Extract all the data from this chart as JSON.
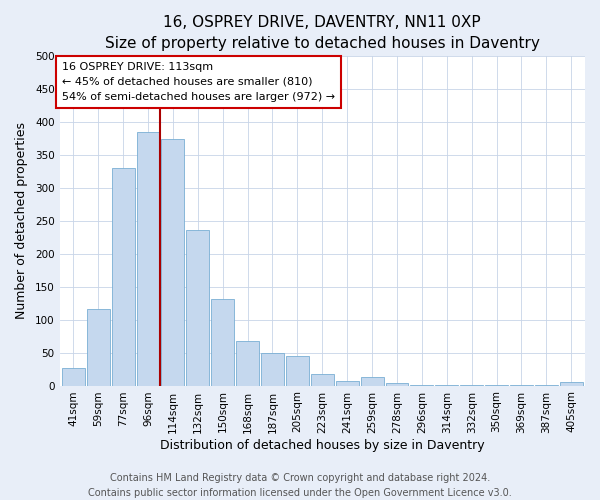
{
  "title": "16, OSPREY DRIVE, DAVENTRY, NN11 0XP",
  "subtitle": "Size of property relative to detached houses in Daventry",
  "xlabel": "Distribution of detached houses by size in Daventry",
  "ylabel": "Number of detached properties",
  "bar_labels": [
    "41sqm",
    "59sqm",
    "77sqm",
    "96sqm",
    "114sqm",
    "132sqm",
    "150sqm",
    "168sqm",
    "187sqm",
    "205sqm",
    "223sqm",
    "241sqm",
    "259sqm",
    "278sqm",
    "296sqm",
    "314sqm",
    "332sqm",
    "350sqm",
    "369sqm",
    "387sqm",
    "405sqm"
  ],
  "bar_values": [
    27,
    117,
    330,
    385,
    375,
    236,
    132,
    68,
    50,
    45,
    18,
    7,
    13,
    4,
    1,
    1,
    1,
    1,
    1,
    1,
    5
  ],
  "bar_color": "#c5d8ee",
  "bar_edgecolor": "#7aafd4",
  "vline_x_index": 4,
  "vline_color": "#aa0000",
  "annotation_title": "16 OSPREY DRIVE: 113sqm",
  "annotation_line1": "← 45% of detached houses are smaller (810)",
  "annotation_line2": "54% of semi-detached houses are larger (972) →",
  "annotation_box_edgecolor": "#cc0000",
  "ylim": [
    0,
    500
  ],
  "yticks": [
    0,
    50,
    100,
    150,
    200,
    250,
    300,
    350,
    400,
    450,
    500
  ],
  "footnote1": "Contains HM Land Registry data © Crown copyright and database right 2024.",
  "footnote2": "Contains public sector information licensed under the Open Government Licence v3.0.",
  "title_fontsize": 11,
  "subtitle_fontsize": 9.5,
  "axis_label_fontsize": 9,
  "tick_fontsize": 7.5,
  "annotation_fontsize": 8,
  "footnote_fontsize": 7,
  "background_color": "#e8eef8",
  "plot_background_color": "#ffffff",
  "grid_color": "#c8d4e8"
}
